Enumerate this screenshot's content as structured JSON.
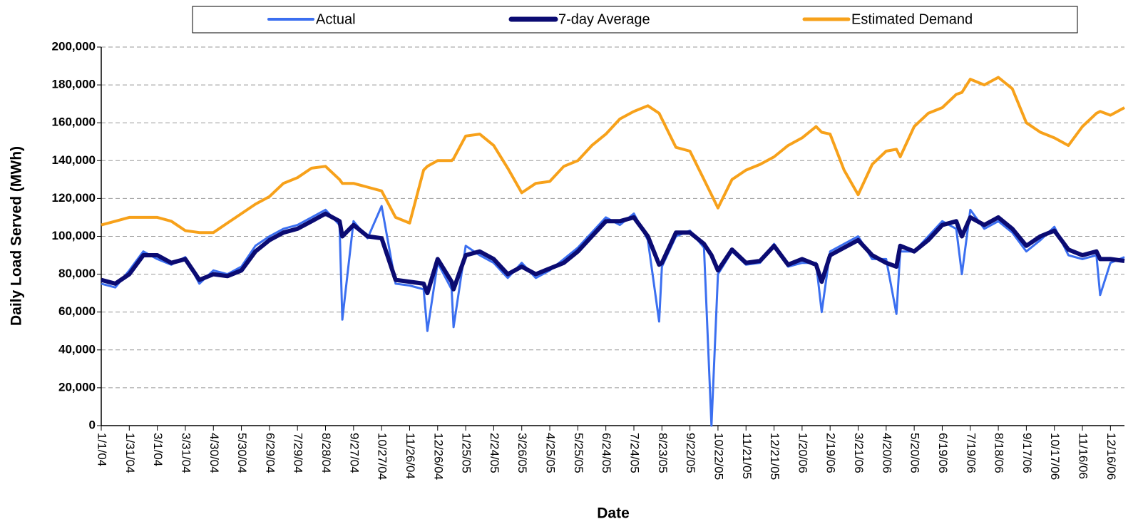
{
  "chart_data": {
    "type": "line",
    "x_label": "Date",
    "y_label": "Daily Load Served (MWh)",
    "legend": "top",
    "grid": true,
    "x": [
      "1/1/04",
      "1/16/04",
      "1/31/04",
      "2/15/04",
      "3/1/04",
      "3/16/04",
      "3/31/04",
      "4/15/04",
      "4/30/04",
      "5/15/04",
      "5/30/04",
      "6/14/04",
      "6/29/04",
      "7/14/04",
      "7/29/04",
      "8/13/04",
      "8/28/04",
      "9/12/04",
      "9/15/04",
      "9/27/04",
      "10/12/04",
      "10/27/04",
      "11/11/04",
      "11/26/04",
      "12/11/04",
      "12/15/04",
      "12/26/04",
      "1/10/05",
      "1/12/05",
      "1/25/05",
      "2/9/05",
      "2/24/05",
      "3/11/05",
      "3/26/05",
      "4/10/05",
      "4/25/05",
      "5/10/05",
      "5/25/05",
      "6/9/05",
      "6/24/05",
      "7/9/05",
      "7/24/05",
      "8/8/05",
      "8/20/05",
      "8/23/05",
      "9/7/05",
      "9/22/05",
      "10/7/05",
      "10/15/05",
      "10/22/05",
      "11/6/05",
      "11/21/05",
      "12/6/05",
      "12/21/05",
      "1/5/06",
      "1/20/06",
      "2/4/06",
      "2/10/06",
      "2/19/06",
      "3/6/06",
      "3/21/06",
      "4/5/06",
      "4/20/06",
      "5/1/06",
      "5/5/06",
      "5/20/06",
      "6/4/06",
      "6/19/06",
      "7/4/06",
      "7/10/06",
      "7/19/06",
      "8/3/06",
      "8/18/06",
      "9/2/06",
      "9/17/06",
      "10/2/06",
      "10/17/06",
      "11/1/06",
      "11/16/06",
      "12/1/06",
      "12/5/06",
      "12/16/06",
      "12/31/06"
    ],
    "series": [
      {
        "name": "Actual",
        "color": "#3b6ff0",
        "width": 3,
        "values": [
          75000,
          73000,
          82000,
          92000,
          88000,
          85000,
          89000,
          75000,
          82000,
          80000,
          84000,
          95000,
          100000,
          104000,
          106000,
          110000,
          114000,
          106000,
          56000,
          108000,
          99000,
          116000,
          75000,
          74000,
          72000,
          50000,
          86000,
          72000,
          52000,
          95000,
          90000,
          86000,
          78000,
          86000,
          78000,
          82000,
          88000,
          94000,
          102000,
          110000,
          106000,
          112000,
          98000,
          55000,
          84000,
          100000,
          103000,
          94000,
          0,
          80000,
          92000,
          85000,
          86000,
          96000,
          84000,
          86000,
          86000,
          60000,
          92000,
          96000,
          100000,
          88000,
          88000,
          59000,
          92000,
          92000,
          100000,
          108000,
          104000,
          80000,
          114000,
          104000,
          108000,
          102000,
          92000,
          98000,
          105000,
          90000,
          88000,
          90000,
          69000,
          86000,
          89000
        ]
      },
      {
        "name": "7-day Average",
        "color": "#0b0b72",
        "width": 6,
        "values": [
          77000,
          75000,
          80000,
          90000,
          90000,
          86000,
          88000,
          77000,
          80000,
          79000,
          82000,
          92000,
          98000,
          102000,
          104000,
          108000,
          112000,
          108000,
          100000,
          106000,
          100000,
          99000,
          77000,
          76000,
          75000,
          70000,
          88000,
          76000,
          72000,
          90000,
          92000,
          88000,
          80000,
          84000,
          80000,
          83000,
          86000,
          92000,
          100000,
          108000,
          108000,
          110000,
          100000,
          85000,
          86000,
          102000,
          102000,
          96000,
          90000,
          82000,
          93000,
          86000,
          87000,
          95000,
          85000,
          88000,
          85000,
          76000,
          90000,
          94000,
          98000,
          90000,
          86000,
          84000,
          95000,
          92000,
          98000,
          106000,
          108000,
          100000,
          110000,
          106000,
          110000,
          104000,
          95000,
          100000,
          103000,
          93000,
          90000,
          92000,
          88000,
          88000,
          87000
        ]
      },
      {
        "name": "Estimated Demand",
        "color": "#f7a11a",
        "width": 4,
        "values": [
          106000,
          108000,
          110000,
          110000,
          110000,
          108000,
          103000,
          102000,
          102000,
          107000,
          112000,
          117000,
          121000,
          128000,
          131000,
          136000,
          137000,
          130000,
          128000,
          128000,
          126000,
          124000,
          110000,
          107000,
          135000,
          137000,
          140000,
          140000,
          141000,
          153000,
          154000,
          148000,
          136000,
          123000,
          128000,
          129000,
          137000,
          140000,
          148000,
          154000,
          162000,
          166000,
          169000,
          165000,
          162000,
          147000,
          145000,
          130000,
          122000,
          115000,
          130000,
          135000,
          138000,
          142000,
          148000,
          152000,
          158000,
          155000,
          154000,
          135000,
          122000,
          138000,
          145000,
          146000,
          142000,
          158000,
          165000,
          168000,
          175000,
          176000,
          183000,
          180000,
          184000,
          178000,
          160000,
          155000,
          152000,
          148000,
          158000,
          165000,
          166000,
          164000,
          168000
        ]
      }
    ],
    "xlim": [
      "1/1/04",
      "12/31/06"
    ],
    "xticks": [
      "1/1/04",
      "1/31/04",
      "3/1/04",
      "3/31/04",
      "4/30/04",
      "5/30/04",
      "6/29/04",
      "7/29/04",
      "8/28/04",
      "9/27/04",
      "10/27/04",
      "11/26/04",
      "12/26/04",
      "1/25/05",
      "2/24/05",
      "3/26/05",
      "4/25/05",
      "5/25/05",
      "6/24/05",
      "7/24/05",
      "8/23/05",
      "9/22/05",
      "10/22/05",
      "11/21/05",
      "12/21/05",
      "1/20/06",
      "2/19/06",
      "3/21/06",
      "4/20/06",
      "5/20/06",
      "6/19/06",
      "7/19/06",
      "8/18/06",
      "9/17/06",
      "10/17/06",
      "11/16/06",
      "12/16/06"
    ],
    "ylim": [
      0,
      200000
    ],
    "yticks": [
      0,
      {
        "value": 20000,
        "label": "20,000"
      },
      {
        "value": 40000,
        "label": "40,000"
      },
      {
        "value": 60000,
        "label": "60,000"
      },
      {
        "value": 80000,
        "label": "80,000"
      },
      {
        "value": 100000,
        "label": "100,000"
      },
      {
        "value": 120000,
        "label": "120,000"
      },
      {
        "value": 140000,
        "label": "140,000"
      },
      {
        "value": 160000,
        "label": "160,000"
      },
      {
        "value": 180000,
        "label": "180,000"
      },
      {
        "value": 200000,
        "label": "200,000"
      }
    ]
  }
}
